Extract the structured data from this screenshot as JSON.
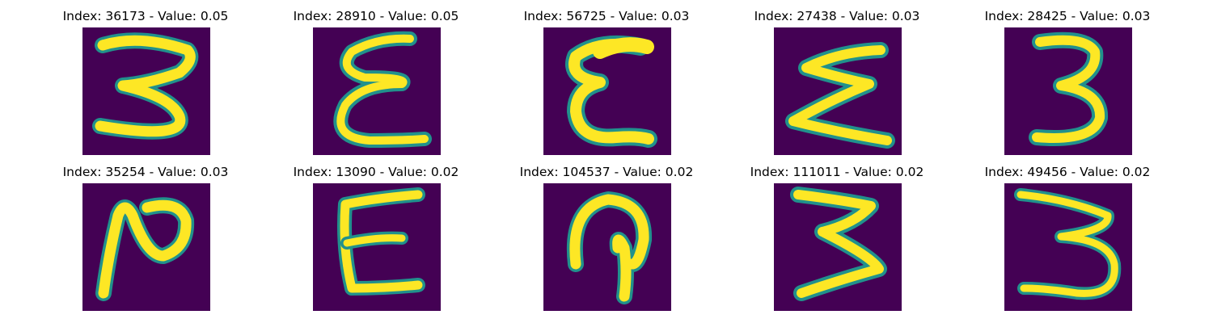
{
  "panels": [
    {
      "title": "Index: 36173 - Value: 0.05",
      "glyph": "digit-3-left-open"
    },
    {
      "title": "Index: 28910 - Value: 0.05",
      "glyph": "epsilon-curly"
    },
    {
      "title": "Index: 56725 - Value: 0.03",
      "glyph": "epsilon-round"
    },
    {
      "title": "Index: 27438 - Value: 0.03",
      "glyph": "zigzag-sigma"
    },
    {
      "title": "Index: 28425 - Value: 0.03",
      "glyph": "digit-3"
    },
    {
      "title": "Index: 35254 - Value: 0.03",
      "glyph": "digit-2-rotated"
    },
    {
      "title": "Index: 13090 - Value: 0.02",
      "glyph": "letter-E"
    },
    {
      "title": "Index: 104537 - Value: 0.02",
      "glyph": "arch-hook"
    },
    {
      "title": "Index: 111011 - Value: 0.02",
      "glyph": "digit-3-sharp"
    },
    {
      "title": "Index: 49456 - Value: 0.02",
      "glyph": "digit-3-wide"
    }
  ],
  "colors": {
    "background": "#440154",
    "stroke_edge": "#21918c",
    "stroke_core": "#fde725"
  }
}
